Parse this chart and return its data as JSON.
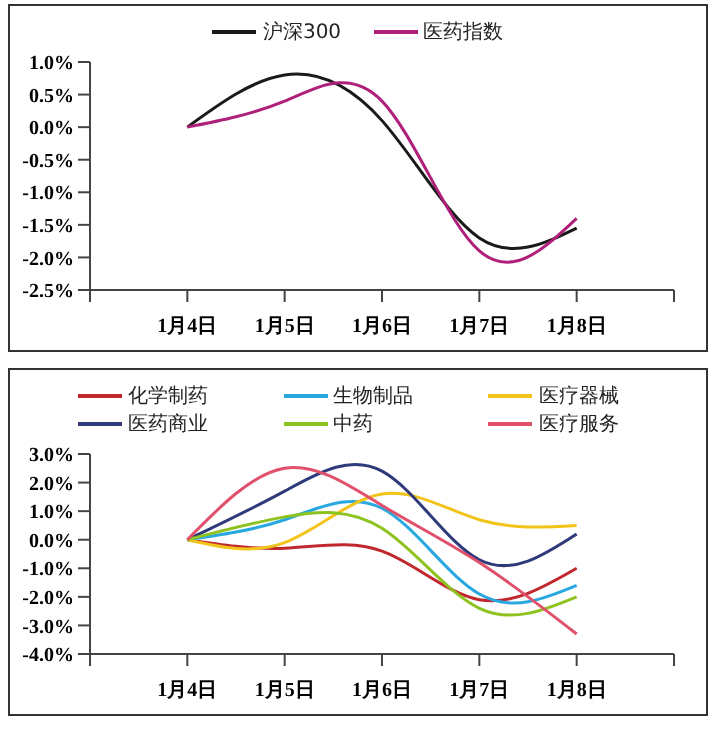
{
  "chart_data": [
    {
      "type": "line",
      "categories": [
        null,
        "1月4日",
        "1月5日",
        "1月6日",
        "1月7日",
        "1月8日",
        null
      ],
      "series": [
        {
          "name": "沪深300",
          "color": "#1a1a1a",
          "values": [
            null,
            0,
            0.8,
            0.1,
            -1.7,
            -1.55,
            null
          ]
        },
        {
          "name": "医药指数",
          "color": "#b0207a",
          "values": [
            null,
            0,
            0.4,
            0.4,
            -1.9,
            -1.4,
            null
          ]
        }
      ],
      "ylim": [
        -2.5,
        1.0
      ],
      "yticks": [
        {
          "value": -2.5,
          "label": "-2.5%"
        },
        {
          "value": -2,
          "label": "-2.0%"
        },
        {
          "value": -1.5,
          "label": "-1.5%"
        },
        {
          "value": -1,
          "label": "-1.0%"
        },
        {
          "value": -0.5,
          "label": "-0.5%"
        },
        {
          "value": 0,
          "label": "0.0%"
        },
        {
          "value": 0.5,
          "label": "0.5%"
        },
        {
          "value": 1,
          "label": "1.0%"
        }
      ],
      "grid": false,
      "legend": "top",
      "marker": "none",
      "line_style": "solid"
    },
    {
      "type": "line",
      "categories": [
        null,
        "1月4日",
        "1月5日",
        "1月6日",
        "1月7日",
        "1月8日",
        null
      ],
      "series": [
        {
          "name": "化学制药",
          "color": "#c0282d",
          "values": [
            null,
            0,
            -0.3,
            -0.4,
            -2.1,
            -1.0,
            null
          ]
        },
        {
          "name": "生物制品",
          "color": "#29a8e0",
          "values": [
            null,
            0,
            0.7,
            1.1,
            -1.9,
            -1.6,
            null
          ]
        },
        {
          "name": "医疗器械",
          "color": "#f2c41a",
          "values": [
            null,
            0,
            -0.1,
            1.6,
            0.7,
            0.5,
            null
          ]
        },
        {
          "name": "医药商业",
          "color": "#2e3a7a",
          "values": [
            null,
            0,
            1.7,
            2.4,
            -0.7,
            0.2,
            null
          ]
        },
        {
          "name": "中药",
          "color": "#8dc21f",
          "values": [
            null,
            0,
            0.8,
            0.4,
            -2.4,
            -2.0,
            null
          ]
        },
        {
          "name": "医疗服务",
          "color": "#e0506a",
          "values": [
            null,
            0,
            2.5,
            1.2,
            -0.8,
            -3.3,
            null
          ]
        }
      ],
      "ylim": [
        -4,
        3
      ],
      "yticks": [
        {
          "value": -4,
          "label": "-4.0%"
        },
        {
          "value": -3,
          "label": "-3.0%"
        },
        {
          "value": -2,
          "label": "-2.0%"
        },
        {
          "value": -1,
          "label": "-1.0%"
        },
        {
          "value": 0,
          "label": "0.0%"
        },
        {
          "value": 1,
          "label": "1.0%"
        },
        {
          "value": 2,
          "label": "2.0%"
        },
        {
          "value": 3,
          "label": "3.0%"
        }
      ],
      "grid": false,
      "legend": "top",
      "marker": "none",
      "line_style": "solid"
    }
  ]
}
